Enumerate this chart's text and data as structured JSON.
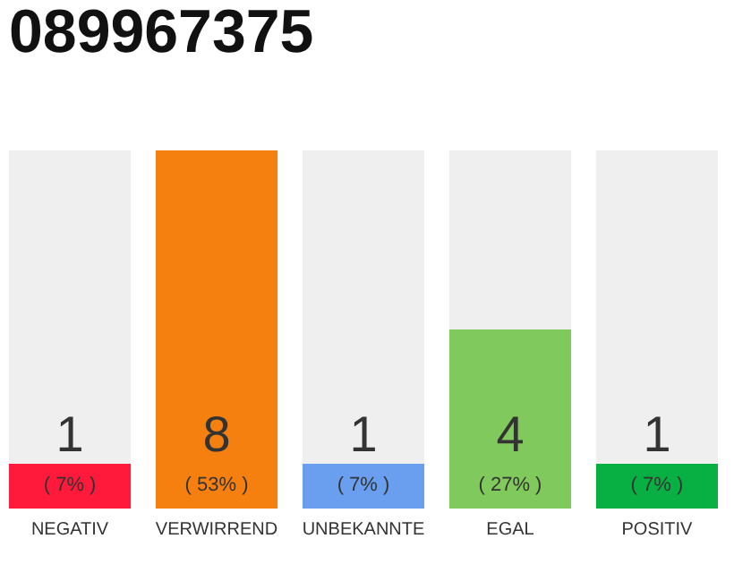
{
  "chart_data": {
    "type": "bar",
    "title": "089967375",
    "categories": [
      "NEGATIV",
      "VERWIRREND",
      "UNBEKANNTE",
      "EGAL",
      "POSITIV"
    ],
    "values": [
      1,
      8,
      1,
      4,
      1
    ],
    "colors": [
      "#ff1a3c",
      "#f5800f",
      "#6a9ff0",
      "#80c95c",
      "#08b043"
    ],
    "data_labels": true,
    "annotations": [
      "( 7% )",
      "( 53% )",
      "( 7% )",
      "( 27% )",
      "( 7% )"
    ],
    "grid": false
  }
}
